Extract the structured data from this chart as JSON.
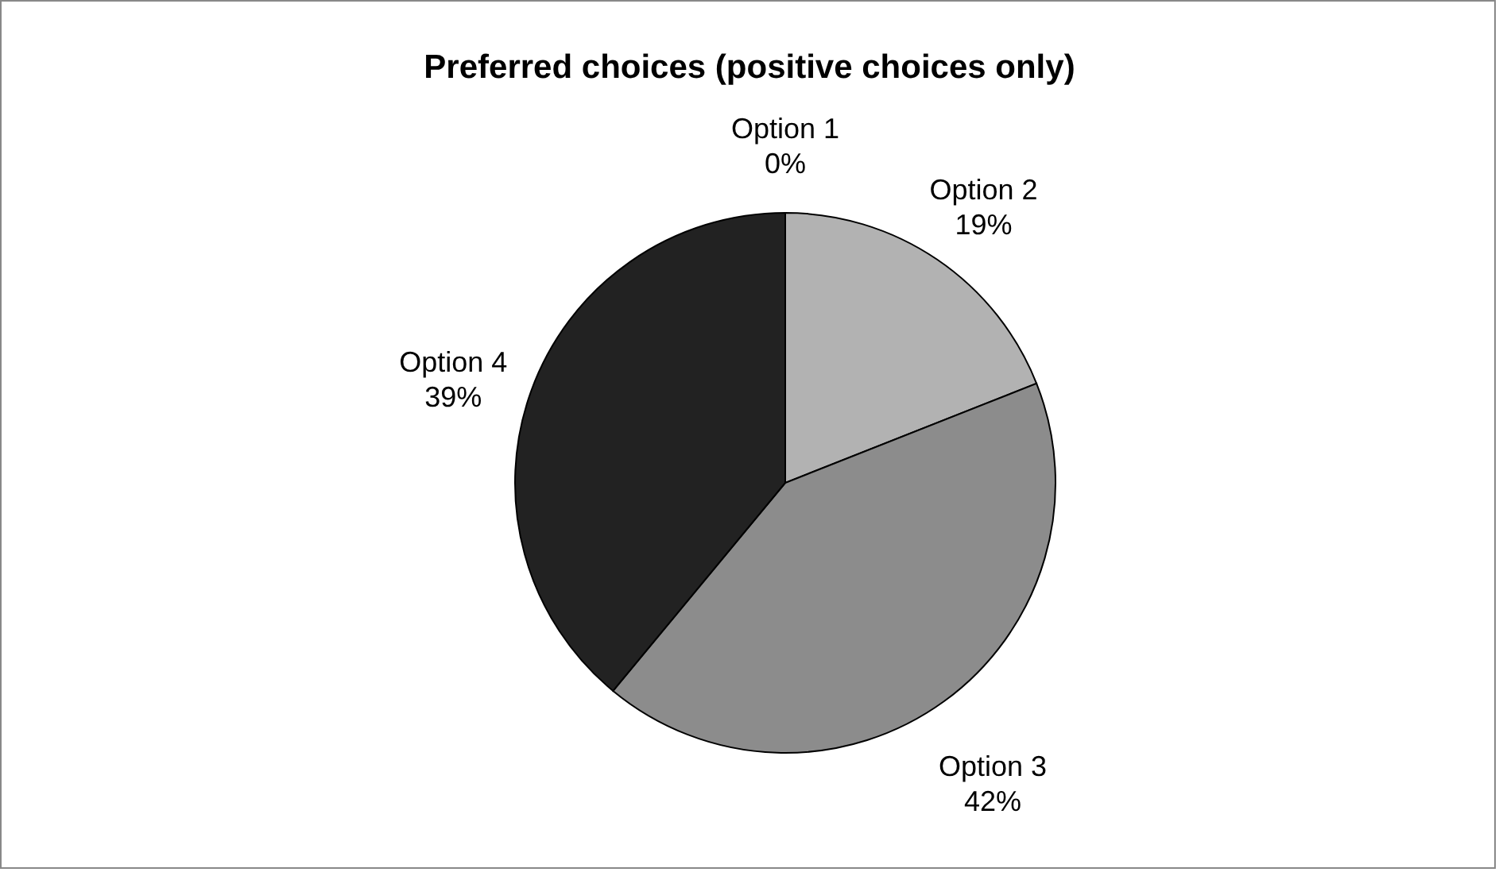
{
  "chart_data": {
    "type": "pie",
    "title": "Preferred choices (positive choices only)",
    "categories": [
      "Option 1",
      "Option 2",
      "Option 3",
      "Option 4"
    ],
    "values": [
      0,
      19,
      42,
      39
    ],
    "colors": [
      "#d9d9d9",
      "#b2b2b2",
      "#8c8c8c",
      "#222222"
    ],
    "value_labels": [
      "0%",
      "19%",
      "42%",
      "39%"
    ],
    "legend": false
  }
}
